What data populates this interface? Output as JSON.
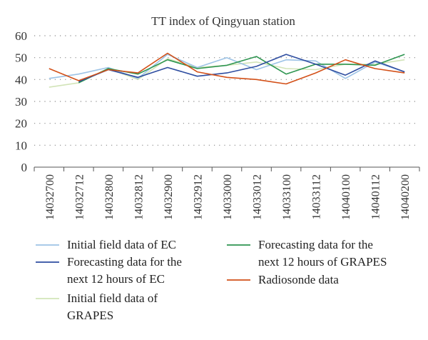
{
  "chart_data": {
    "type": "line",
    "title": "TT index of Qingyuan station",
    "xlabel": "",
    "ylabel": "",
    "ylim": [
      0,
      60
    ],
    "yticks": [
      "0",
      "10",
      "20",
      "30",
      "40",
      "50",
      "60"
    ],
    "grid": "horizontal dotted",
    "legend_position": "bottom",
    "categories": [
      "14032700",
      "14032712",
      "14032800",
      "14032812",
      "14032900",
      "14032912",
      "14033000",
      "14033012",
      "14033100",
      "14033112",
      "14040100",
      "14040112",
      "14040200"
    ],
    "series": [
      {
        "name": "Initial field data of EC",
        "color": "#9dc3e6",
        "values": [
          40.5,
          42.5,
          45.5,
          40.5,
          51.5,
          45.5,
          50,
          44.5,
          49,
          48.5,
          40.5,
          48,
          43.5
        ]
      },
      {
        "name": "Forecasting data for the next 12 hours of EC",
        "color": "#2e4da0",
        "values": [
          null,
          39,
          44.5,
          41,
          45.5,
          41.5,
          43,
          46,
          51.5,
          47,
          42,
          48.5,
          43.5
        ]
      },
      {
        "name": "Initial field data of GRAPES",
        "color": "#d2e4b8",
        "values": [
          36.5,
          38.5,
          45,
          40,
          49.5,
          45.5,
          46.5,
          48,
          45,
          44.5,
          47,
          47,
          49
        ]
      },
      {
        "name": "Forecasting data for the next 12 hours of GRAPES",
        "color": "#2e9550",
        "values": [
          null,
          38.5,
          45,
          42.5,
          49,
          45,
          46.5,
          50.5,
          42.5,
          47,
          47,
          46.5,
          51.5
        ]
      },
      {
        "name": "Radiosonde data",
        "color": "#d35018",
        "values": [
          45,
          39.5,
          44.5,
          43,
          52,
          43.5,
          41,
          40,
          38,
          43,
          49,
          45,
          43
        ]
      }
    ],
    "legend_lines": {
      "s0": [
        "Initial field data of EC"
      ],
      "s1": [
        "Forecasting data for the",
        "next 12 hours of EC"
      ],
      "s2": [
        "Initial field data of",
        "GRAPES"
      ],
      "s3": [
        "Forecasting data for the",
        "next 12 hours of GRAPES"
      ],
      "s4": [
        "Radiosonde data"
      ]
    }
  }
}
